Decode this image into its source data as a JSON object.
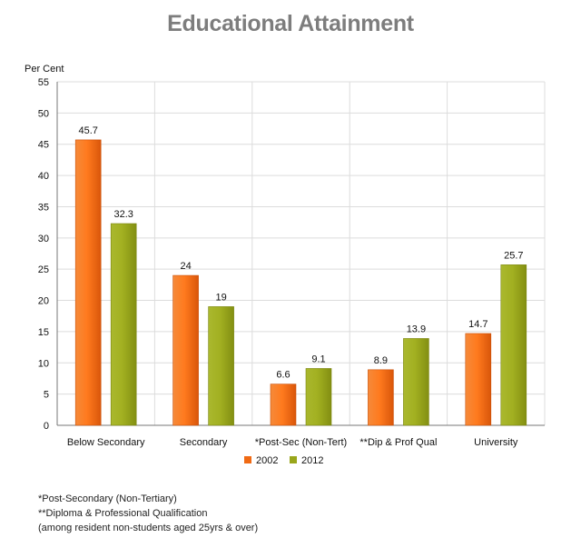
{
  "chart_data": {
    "type": "bar",
    "title": "Educational Attainment",
    "ylabel": "Per Cent",
    "xlabel": "",
    "ylim": [
      0,
      55
    ],
    "yticks": [
      0,
      5,
      10,
      15,
      20,
      25,
      30,
      35,
      40,
      45,
      50,
      55
    ],
    "grid": true,
    "legend_position": "bottom",
    "categories": [
      "Below Secondary",
      "Secondary",
      "*Post-Sec (Non-Tert)",
      "**Dip & Prof Qual",
      "University"
    ],
    "series": [
      {
        "name": "2002",
        "color": "#f06a14",
        "values": [
          45.7,
          24,
          6.6,
          8.9,
          14.7
        ],
        "labels": [
          "45.7",
          "24",
          "6.6",
          "8.9",
          "14.7"
        ]
      },
      {
        "name": "2012",
        "color": "#99a61b",
        "values": [
          32.3,
          19,
          9.1,
          13.9,
          25.7
        ],
        "labels": [
          "32.3",
          "19",
          "9.1",
          "13.9",
          "25.7"
        ]
      }
    ]
  },
  "footnotes": [
    "*Post-Secondary (Non-Tertiary)",
    "**Diploma & Professional Qualification",
    "(among resident non-students aged 25yrs & over)"
  ]
}
